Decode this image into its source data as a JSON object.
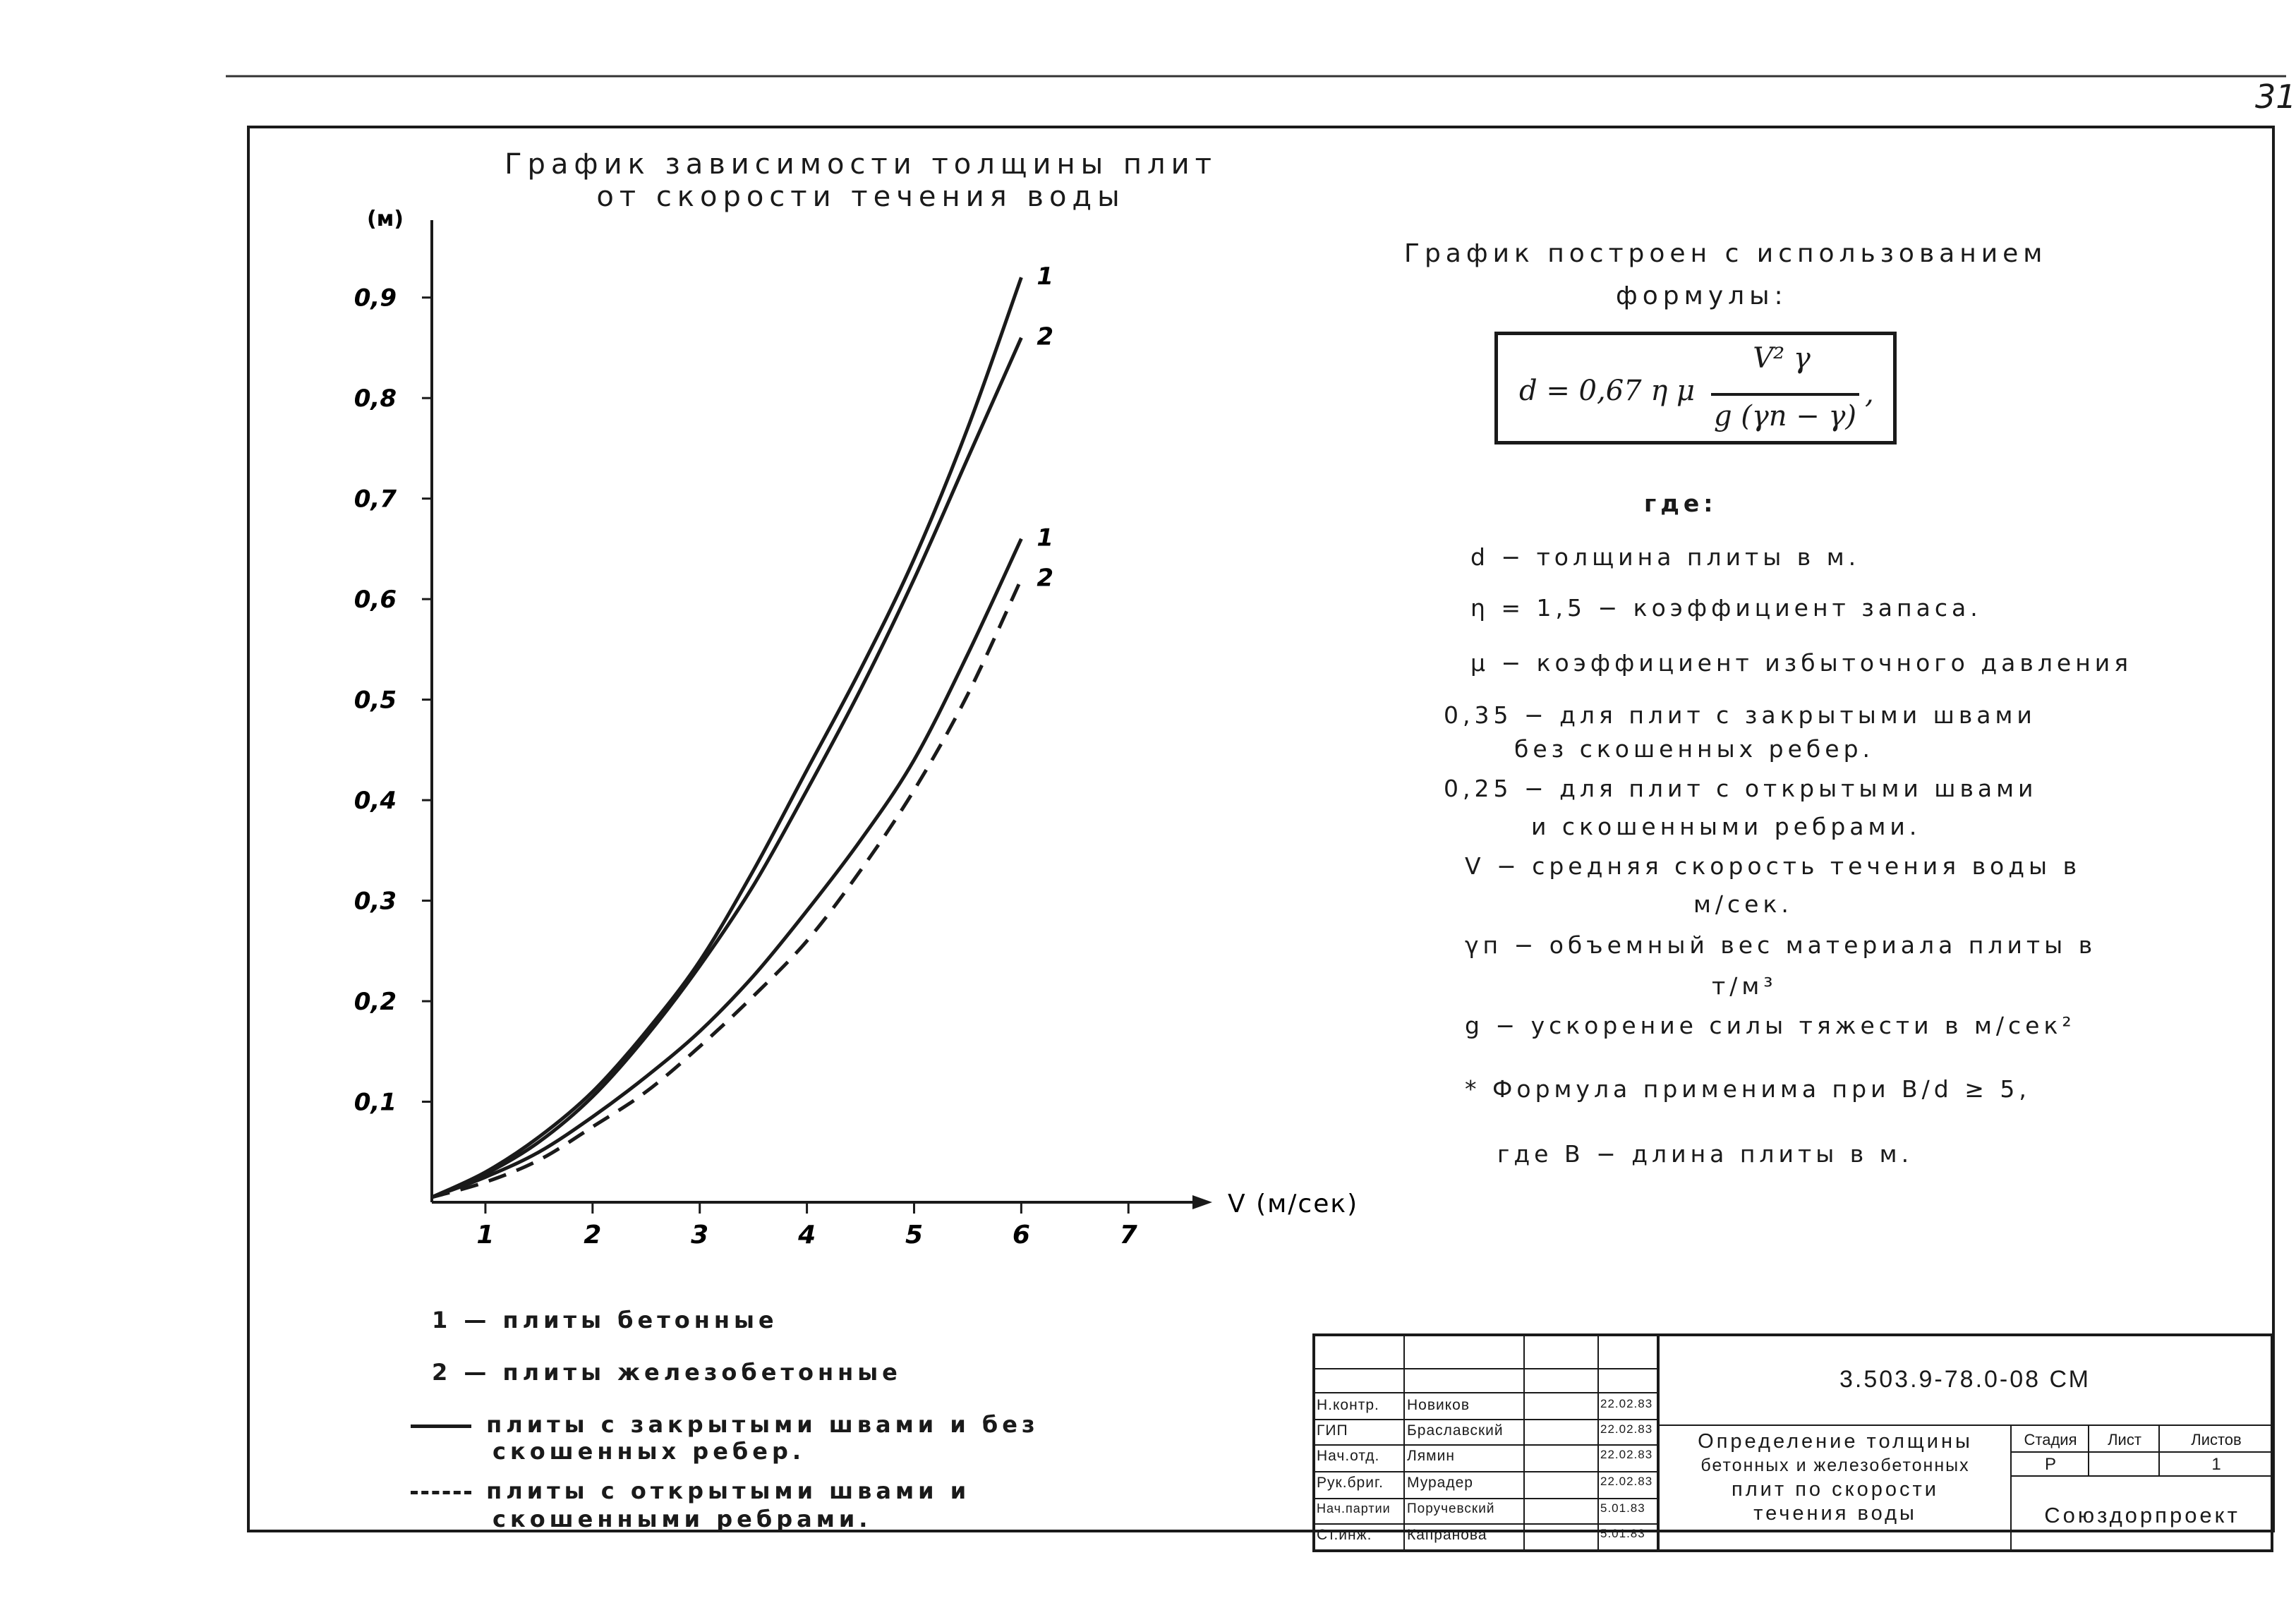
{
  "sheet_number": "31",
  "chart_data": {
    "type": "line",
    "title": [
      "График зависимости толщины плит",
      "от скорости течения воды"
    ],
    "ylabel": "(м)",
    "xlabel": "V (м/сек)",
    "xlim": [
      0.5,
      7.4
    ],
    "ylim": [
      0,
      0.97
    ],
    "x_ticks": [
      "1",
      "2",
      "3",
      "4",
      "5",
      "6",
      "7"
    ],
    "y_ticks": [
      "0,1",
      "0,2",
      "0,3",
      "0,4",
      "0,5",
      "0,6",
      "0,7",
      "0,8",
      "0,9"
    ],
    "grid": false,
    "series": [
      {
        "name": "1",
        "line_style": "solid",
        "x": [
          0.5,
          1,
          1.5,
          2,
          2.5,
          3,
          3.5,
          4,
          4.5,
          5,
          5.5,
          6
        ],
        "y": [
          0.005,
          0.03,
          0.065,
          0.11,
          0.17,
          0.24,
          0.33,
          0.43,
          0.53,
          0.64,
          0.77,
          0.92
        ]
      },
      {
        "name": "2",
        "line_style": "solid",
        "x": [
          0.5,
          1,
          1.5,
          2,
          2.5,
          3,
          3.5,
          4,
          4.5,
          5,
          5.5,
          6
        ],
        "y": [
          0.005,
          0.028,
          0.06,
          0.105,
          0.165,
          0.235,
          0.315,
          0.41,
          0.51,
          0.62,
          0.74,
          0.86
        ]
      },
      {
        "name": "1",
        "line_style": "solid",
        "x": [
          0.5,
          1,
          1.5,
          2,
          2.5,
          3,
          3.5,
          4,
          4.5,
          5,
          5.5,
          6
        ],
        "y": [
          0.005,
          0.025,
          0.05,
          0.085,
          0.125,
          0.17,
          0.225,
          0.29,
          0.36,
          0.44,
          0.545,
          0.66
        ]
      },
      {
        "name": "2",
        "line_style": "dashed",
        "x": [
          0.5,
          1,
          1.5,
          2,
          2.5,
          3,
          3.5,
          4,
          4.5,
          5,
          5.5,
          6
        ],
        "y": [
          0.005,
          0.02,
          0.042,
          0.075,
          0.11,
          0.155,
          0.205,
          0.26,
          0.33,
          0.41,
          0.505,
          0.62
        ]
      }
    ]
  },
  "legend": {
    "item1": "1 — плиты бетонные",
    "item2": "2 — плиты железобетонные",
    "solid_line_1": "плиты с закрытыми швами и без",
    "solid_line_2": "скошенных ребер.",
    "dashed_line_1": "плиты с открытыми швами и",
    "dashed_line_2": "скошенными ребрами."
  },
  "formula_section": {
    "intro_1": "График построен с использованием",
    "intro_2": "формулы:",
    "lhs": "d = 0,67 η μ",
    "numerator": "V² γ",
    "denominator": "g (γп − γ)",
    "comma": ",",
    "where": "где:",
    "lines": [
      "d − толщина плиты в м.",
      "η = 1,5 − коэффициент запаса.",
      "μ − коэффициент избыточного давления",
      "0,35 − для плит с закрытыми швами",
      "без скошенных ребер.",
      "0,25 − для плит с открытыми швами",
      "и скошенными ребрами.",
      "V − средняя скорость течения воды в",
      "м/сек.",
      "γп − объемный вес материала плиты в",
      "т/м³",
      "g − ускорение силы тяжести в м/сек²",
      "* Формула применима при B/d ≥ 5,",
      "где B − длина плиты в м."
    ]
  },
  "title_block": {
    "doc_code": "3.503.9-78.0-08 СМ",
    "description": [
      "Определение толщины",
      "бетонных и железобетонных",
      "плит по скорости",
      "течения воды"
    ],
    "stage_label": "Стадия",
    "sheet_label": "Лист",
    "sheets_label": "Листов",
    "stage_value": "Р",
    "sheets_value": "1",
    "organization": "Союздорпроект",
    "staff": [
      {
        "role": "Н.контр.",
        "name": "Новиков",
        "date": "22.02.83"
      },
      {
        "role": "ГИП",
        "name": "Браславский",
        "date": "22.02.83"
      },
      {
        "role": "Нач.отд.",
        "name": "Лямин",
        "date": "22.02.83"
      },
      {
        "role": "Рук.бриг.",
        "name": "Мурадер",
        "date": "22.02.83"
      },
      {
        "role": "Нач.партии",
        "name": "Поручевский",
        "date": "5.01.83"
      },
      {
        "role": "Ст.инж.",
        "name": "Капранова",
        "date": "5.01.83"
      }
    ]
  }
}
